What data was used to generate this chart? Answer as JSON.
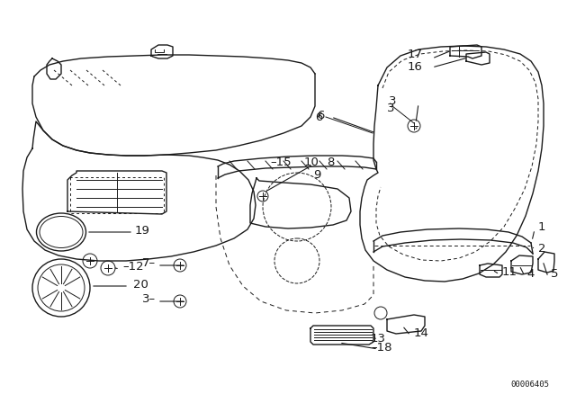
{
  "bg_color": "#ffffff",
  "line_color": "#1a1a1a",
  "diagram_code": "00006405",
  "figsize": [
    6.4,
    4.48
  ],
  "dpi": 100
}
